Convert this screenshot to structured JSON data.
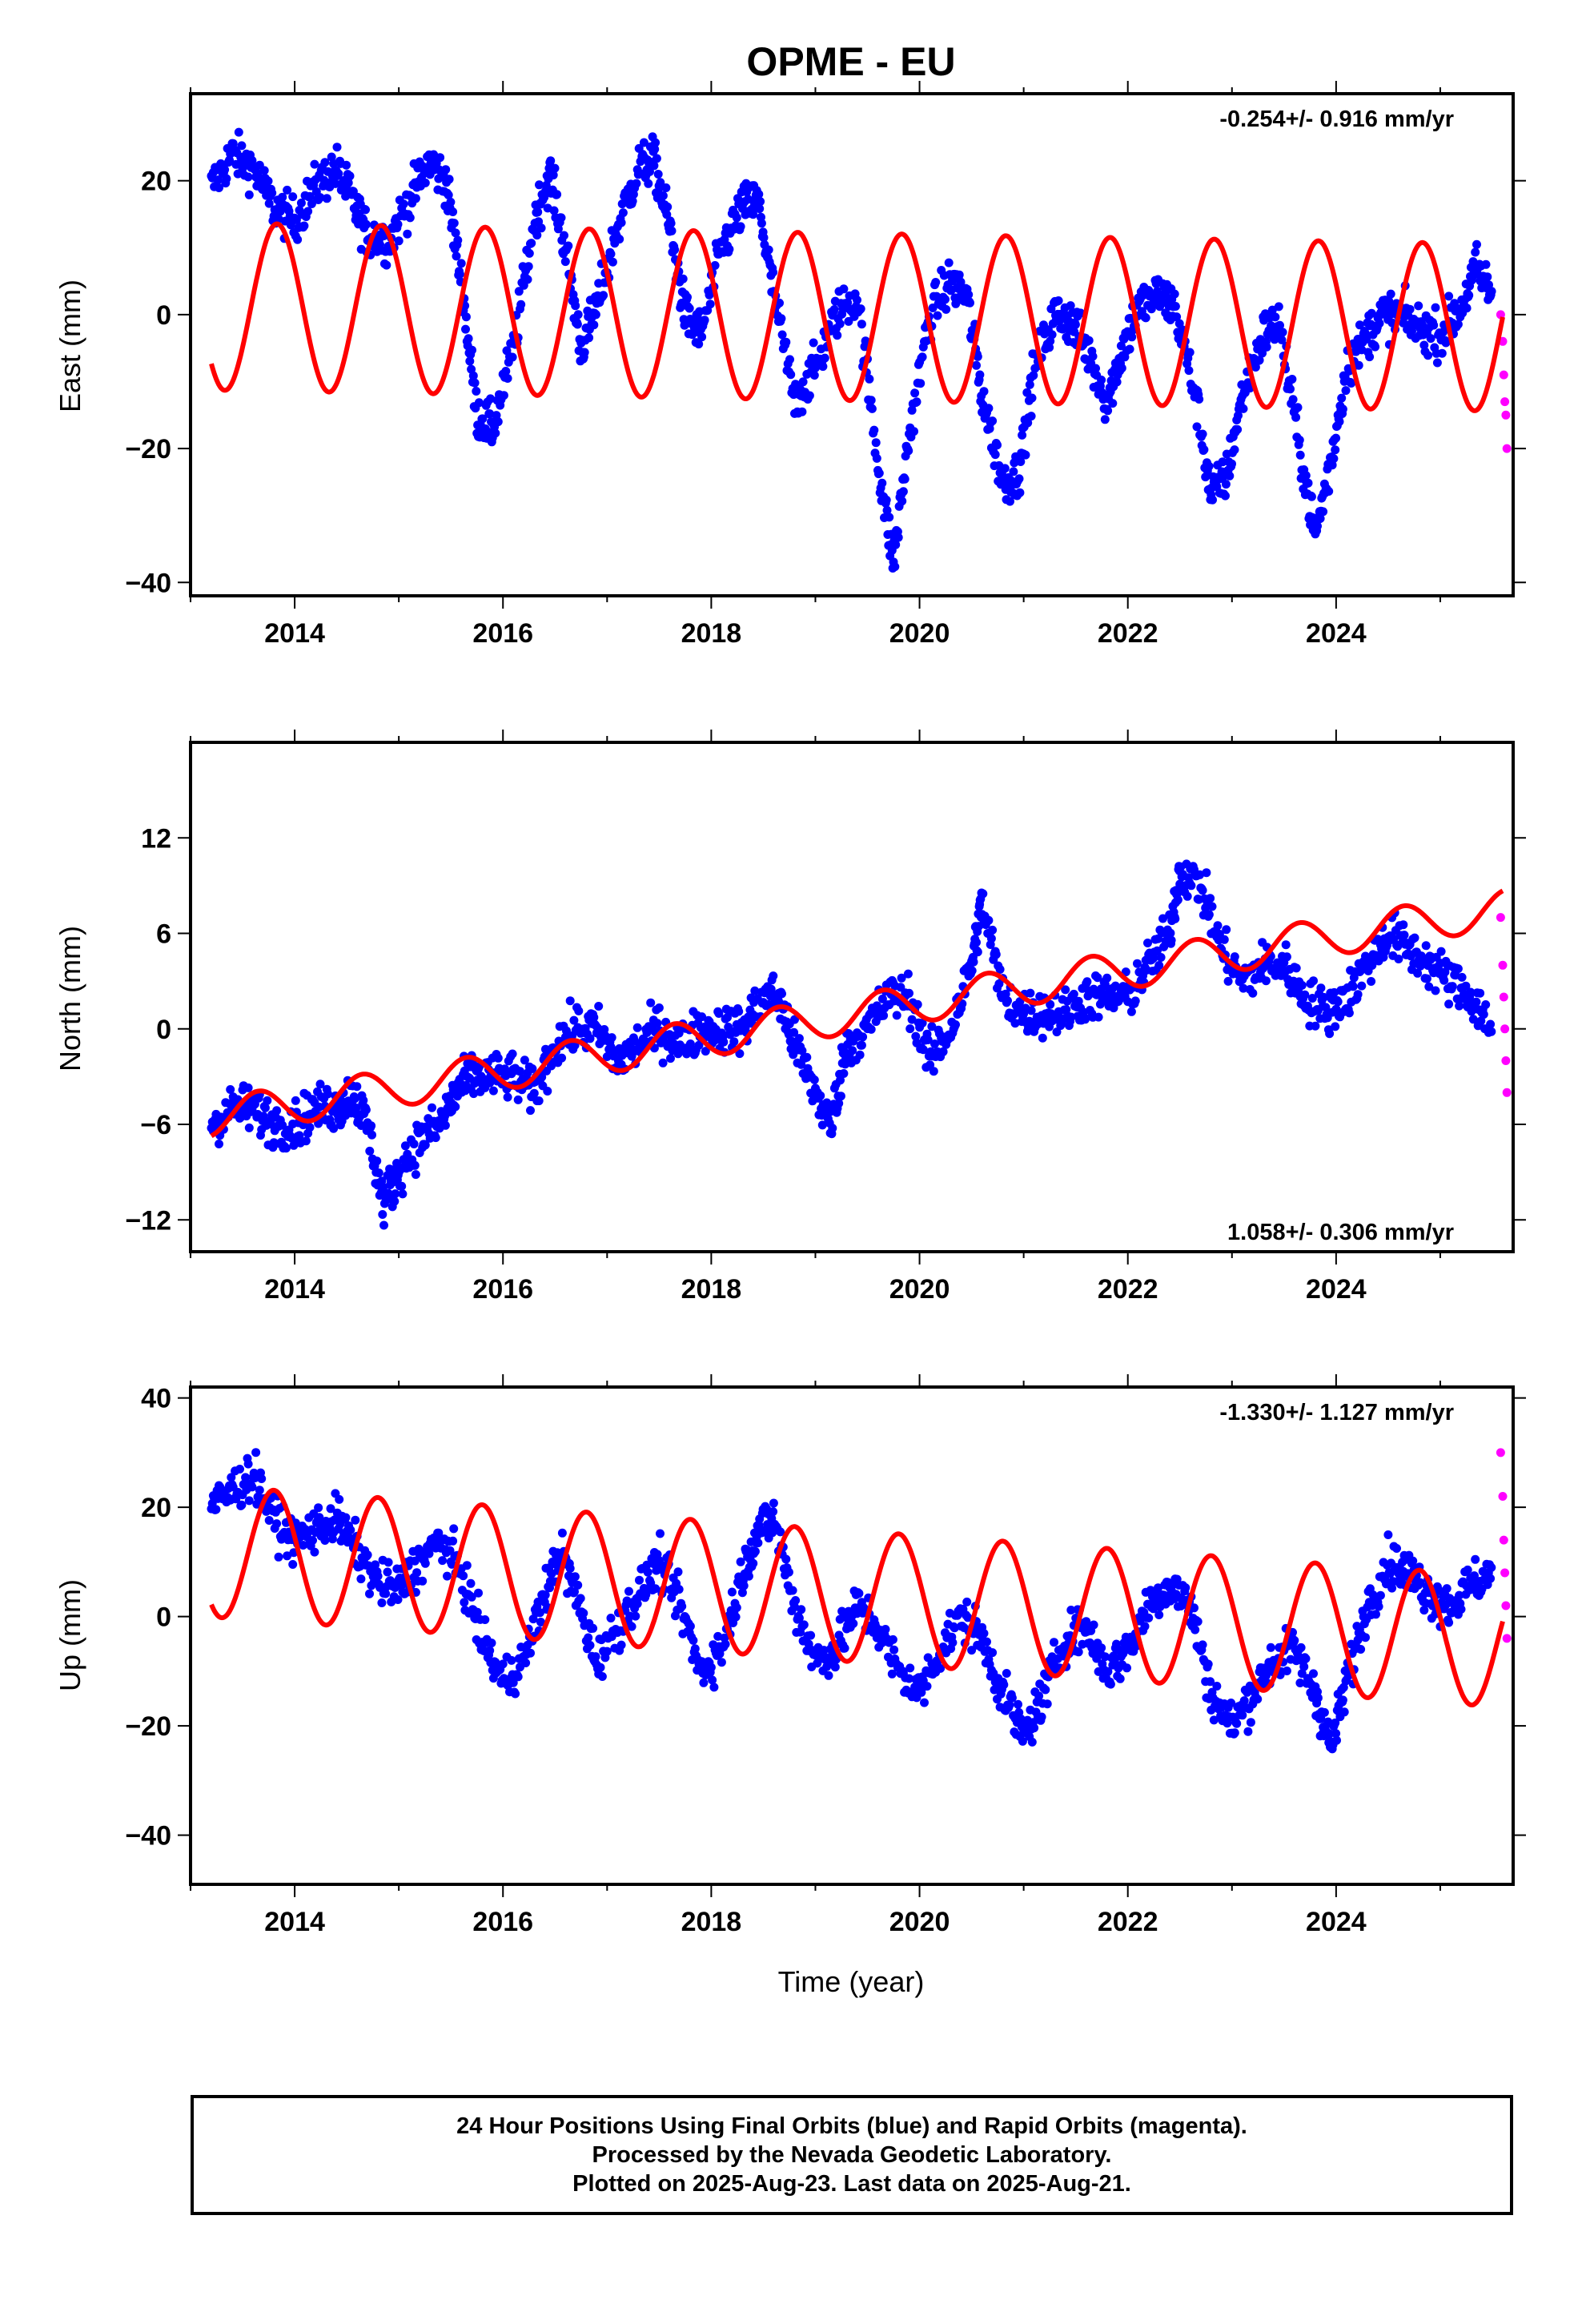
{
  "chart_data": {
    "title": "OPME - EU",
    "xlabel": "Time (year)",
    "x_ticks": [
      "2014",
      "2016",
      "2018",
      "2020",
      "2022",
      "2024"
    ],
    "xlim": [
      2013.0,
      2025.7
    ],
    "colors": {
      "final_orbits": "#0000ff",
      "rapid_orbits": "#ff00ff",
      "model": "#ff0000"
    },
    "panels": [
      {
        "type": "scatter",
        "component": "East",
        "ylabel": "East (mm)",
        "ylim": [
          -42,
          33
        ],
        "y_ticks": [
          20,
          0,
          -20,
          -40
        ],
        "rate_label": "-0.254+/- 0.916 mm/yr",
        "rate_position": "top-right",
        "series": [
          {
            "name": "Final Orbits (blue)",
            "points": [
              [
                2013.2,
                19
              ],
              [
                2013.4,
                24
              ],
              [
                2013.6,
                22
              ],
              [
                2013.8,
                16
              ],
              [
                2014.0,
                14
              ],
              [
                2014.2,
                19
              ],
              [
                2014.4,
                22
              ],
              [
                2014.55,
                17
              ],
              [
                2014.7,
                12
              ],
              [
                2014.9,
                11
              ],
              [
                2015.1,
                17
              ],
              [
                2015.3,
                23
              ],
              [
                2015.45,
                20
              ],
              [
                2015.6,
                5
              ],
              [
                2015.75,
                -15
              ],
              [
                2015.9,
                -17
              ],
              [
                2016.1,
                -5
              ],
              [
                2016.3,
                14
              ],
              [
                2016.45,
                21
              ],
              [
                2016.6,
                10
              ],
              [
                2016.75,
                -5
              ],
              [
                2016.9,
                1
              ],
              [
                2017.1,
                13
              ],
              [
                2017.3,
                22
              ],
              [
                2017.45,
                23
              ],
              [
                2017.6,
                13
              ],
              [
                2017.75,
                0
              ],
              [
                2017.9,
                -3
              ],
              [
                2018.1,
                10
              ],
              [
                2018.3,
                16
              ],
              [
                2018.45,
                17
              ],
              [
                2018.6,
                3
              ],
              [
                2018.8,
                -13
              ],
              [
                2019.0,
                -8
              ],
              [
                2019.2,
                0
              ],
              [
                2019.4,
                3
              ],
              [
                2019.6,
                -22
              ],
              [
                2019.75,
                -37
              ],
              [
                2019.9,
                -18
              ],
              [
                2020.1,
                0
              ],
              [
                2020.3,
                5
              ],
              [
                2020.45,
                3
              ],
              [
                2020.6,
                -12
              ],
              [
                2020.8,
                -25
              ],
              [
                2020.95,
                -24
              ],
              [
                2021.1,
                -8
              ],
              [
                2021.3,
                0
              ],
              [
                2021.45,
                -1
              ],
              [
                2021.6,
                -5
              ],
              [
                2021.8,
                -13
              ],
              [
                2021.95,
                -5
              ],
              [
                2022.1,
                1
              ],
              [
                2022.3,
                3
              ],
              [
                2022.45,
                1
              ],
              [
                2022.65,
                -12
              ],
              [
                2022.8,
                -27
              ],
              [
                2022.95,
                -24
              ],
              [
                2023.1,
                -12
              ],
              [
                2023.3,
                -3
              ],
              [
                2023.45,
                -1
              ],
              [
                2023.65,
                -20
              ],
              [
                2023.8,
                -33
              ],
              [
                2023.95,
                -22
              ],
              [
                2024.1,
                -8
              ],
              [
                2024.3,
                -3
              ],
              [
                2024.45,
                0
              ],
              [
                2024.6,
                0
              ],
              [
                2024.8,
                -2
              ],
              [
                2025.0,
                -3
              ],
              [
                2025.2,
                1
              ],
              [
                2025.35,
                7
              ],
              [
                2025.5,
                3
              ]
            ]
          },
          {
            "name": "Rapid Orbits (magenta)",
            "points": [
              [
                2025.58,
                0
              ],
              [
                2025.6,
                -4
              ],
              [
                2025.61,
                -9
              ],
              [
                2025.62,
                -13
              ],
              [
                2025.63,
                -15
              ],
              [
                2025.64,
                -20
              ]
            ]
          },
          {
            "name": "Model",
            "amp": 12.5,
            "phase": 0.58,
            "offset": -0.25,
            "trend": -0.254
          }
        ]
      },
      {
        "type": "scatter",
        "component": "North",
        "ylabel": "North (mm)",
        "ylim": [
          -14,
          18
        ],
        "y_ticks": [
          12,
          6,
          0,
          -6,
          -12
        ],
        "rate_label": "1.058+/- 0.306 mm/yr",
        "rate_position": "bottom-right",
        "series": [
          {
            "name": "Final Orbits (blue)",
            "points": [
              [
                2013.2,
                -6
              ],
              [
                2013.4,
                -5
              ],
              [
                2013.6,
                -5
              ],
              [
                2013.8,
                -6
              ],
              [
                2014.0,
                -6
              ],
              [
                2014.2,
                -5
              ],
              [
                2014.4,
                -5
              ],
              [
                2014.55,
                -4
              ],
              [
                2014.7,
                -6
              ],
              [
                2014.85,
                -11
              ],
              [
                2015.0,
                -9
              ],
              [
                2015.2,
                -7
              ],
              [
                2015.4,
                -6
              ],
              [
                2015.55,
                -4
              ],
              [
                2015.7,
                -3
              ],
              [
                2015.9,
                -3
              ],
              [
                2016.1,
                -3
              ],
              [
                2016.3,
                -4
              ],
              [
                2016.5,
                -1
              ],
              [
                2016.7,
                0
              ],
              [
                2016.9,
                0
              ],
              [
                2017.1,
                -2
              ],
              [
                2017.3,
                -1
              ],
              [
                2017.5,
                0
              ],
              [
                2017.7,
                -1
              ],
              [
                2017.9,
                0
              ],
              [
                2018.1,
                0
              ],
              [
                2018.3,
                0
              ],
              [
                2018.5,
                2
              ],
              [
                2018.65,
                2
              ],
              [
                2018.8,
                -1
              ],
              [
                2019.0,
                -4
              ],
              [
                2019.15,
                -6
              ],
              [
                2019.3,
                -1
              ],
              [
                2019.5,
                0
              ],
              [
                2019.7,
                2
              ],
              [
                2019.9,
                2
              ],
              [
                2020.1,
                -2
              ],
              [
                2020.3,
                0
              ],
              [
                2020.5,
                4
              ],
              [
                2020.6,
                8
              ],
              [
                2020.8,
                2
              ],
              [
                2021.0,
                1
              ],
              [
                2021.2,
                1
              ],
              [
                2021.4,
                1
              ],
              [
                2021.6,
                2
              ],
              [
                2021.8,
                2
              ],
              [
                2022.0,
                2
              ],
              [
                2022.2,
                4
              ],
              [
                2022.4,
                6
              ],
              [
                2022.5,
                10
              ],
              [
                2022.7,
                9
              ],
              [
                2022.9,
                5
              ],
              [
                2023.1,
                3
              ],
              [
                2023.3,
                4
              ],
              [
                2023.5,
                4
              ],
              [
                2023.7,
                2
              ],
              [
                2023.9,
                1
              ],
              [
                2024.1,
                2
              ],
              [
                2024.3,
                4
              ],
              [
                2024.5,
                6
              ],
              [
                2024.7,
                5
              ],
              [
                2024.9,
                4
              ],
              [
                2025.1,
                3
              ],
              [
                2025.3,
                2
              ],
              [
                2025.5,
                0
              ]
            ]
          },
          {
            "name": "Rapid Orbits (magenta)",
            "points": [
              [
                2025.58,
                7
              ],
              [
                2025.6,
                4
              ],
              [
                2025.61,
                2
              ],
              [
                2025.62,
                0
              ],
              [
                2025.63,
                -2
              ],
              [
                2025.64,
                -4
              ]
            ]
          },
          {
            "name": "Model",
            "amp": 1.2,
            "phase": 0.4,
            "offset": 0.55,
            "trend": 1.058
          }
        ]
      },
      {
        "type": "scatter",
        "component": "Up",
        "ylabel": "Up (mm)",
        "ylim": [
          -49,
          42
        ],
        "y_ticks": [
          40,
          20,
          0,
          -20,
          -40
        ],
        "rate_label": "-1.330+/- 1.127 mm/yr",
        "rate_position": "top-right",
        "series": [
          {
            "name": "Final Orbits (blue)",
            "points": [
              [
                2013.2,
                20
              ],
              [
                2013.4,
                23
              ],
              [
                2013.6,
                26
              ],
              [
                2013.8,
                18
              ],
              [
                2014.0,
                14
              ],
              [
                2014.2,
                16
              ],
              [
                2014.4,
                18
              ],
              [
                2014.6,
                12
              ],
              [
                2014.8,
                6
              ],
              [
                2015.0,
                5
              ],
              [
                2015.2,
                10
              ],
              [
                2015.4,
                14
              ],
              [
                2015.6,
                8
              ],
              [
                2015.8,
                -4
              ],
              [
                2016.0,
                -12
              ],
              [
                2016.2,
                -8
              ],
              [
                2016.4,
                4
              ],
              [
                2016.55,
                12
              ],
              [
                2016.7,
                4
              ],
              [
                2016.9,
                -8
              ],
              [
                2017.1,
                -2
              ],
              [
                2017.3,
                4
              ],
              [
                2017.5,
                10
              ],
              [
                2017.7,
                2
              ],
              [
                2017.9,
                -10
              ],
              [
                2018.1,
                -6
              ],
              [
                2018.3,
                8
              ],
              [
                2018.45,
                16
              ],
              [
                2018.6,
                18
              ],
              [
                2018.8,
                2
              ],
              [
                2019.0,
                -8
              ],
              [
                2019.2,
                -6
              ],
              [
                2019.4,
                2
              ],
              [
                2019.6,
                -2
              ],
              [
                2019.8,
                -10
              ],
              [
                2020.0,
                -14
              ],
              [
                2020.2,
                -6
              ],
              [
                2020.4,
                0
              ],
              [
                2020.6,
                -4
              ],
              [
                2020.8,
                -14
              ],
              [
                2021.0,
                -22
              ],
              [
                2021.2,
                -14
              ],
              [
                2021.4,
                -4
              ],
              [
                2021.6,
                -2
              ],
              [
                2021.8,
                -10
              ],
              [
                2022.0,
                -6
              ],
              [
                2022.2,
                2
              ],
              [
                2022.4,
                6
              ],
              [
                2022.6,
                2
              ],
              [
                2022.8,
                -14
              ],
              [
                2023.0,
                -20
              ],
              [
                2023.2,
                -14
              ],
              [
                2023.4,
                -8
              ],
              [
                2023.6,
                -6
              ],
              [
                2023.8,
                -14
              ],
              [
                2023.95,
                -24
              ],
              [
                2024.1,
                -12
              ],
              [
                2024.3,
                2
              ],
              [
                2024.5,
                10
              ],
              [
                2024.7,
                8
              ],
              [
                2024.9,
                4
              ],
              [
                2025.1,
                2
              ],
              [
                2025.3,
                6
              ],
              [
                2025.5,
                8
              ]
            ]
          },
          {
            "name": "Rapid Orbits (magenta)",
            "points": [
              [
                2025.58,
                30
              ],
              [
                2025.6,
                22
              ],
              [
                2025.61,
                14
              ],
              [
                2025.62,
                8
              ],
              [
                2025.63,
                2
              ],
              [
                2025.64,
                -4
              ]
            ]
          },
          {
            "name": "Model",
            "amp": 12,
            "phase": 0.55,
            "offset": 4.2,
            "trend": -1.33
          }
        ]
      }
    ]
  },
  "caption": {
    "line1": "24 Hour Positions Using Final Orbits (blue) and Rapid Orbits (magenta).",
    "line2": "Processed by the Nevada Geodetic Laboratory.",
    "line3": "Plotted on 2025-Aug-23. Last data on 2025-Aug-21."
  }
}
